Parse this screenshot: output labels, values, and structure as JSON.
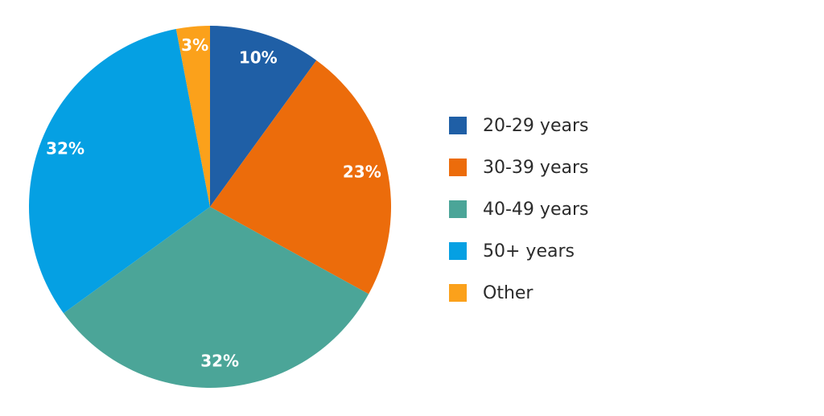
{
  "chart_data": {
    "type": "pie",
    "categories": [
      "20-29 years",
      "30-39 years",
      "40-49 years",
      "50+ years",
      "Other"
    ],
    "values": [
      10,
      23,
      32,
      32,
      3
    ],
    "labels": [
      "10%",
      "23%",
      "32%",
      "32%",
      "3%"
    ],
    "colors": [
      "#1f5fa6",
      "#ec6c0b",
      "#4ba598",
      "#05a0e3",
      "#fba11b"
    ],
    "start_angle_deg": 0,
    "direction": "clockwise",
    "legend_position": "right",
    "title": ""
  }
}
